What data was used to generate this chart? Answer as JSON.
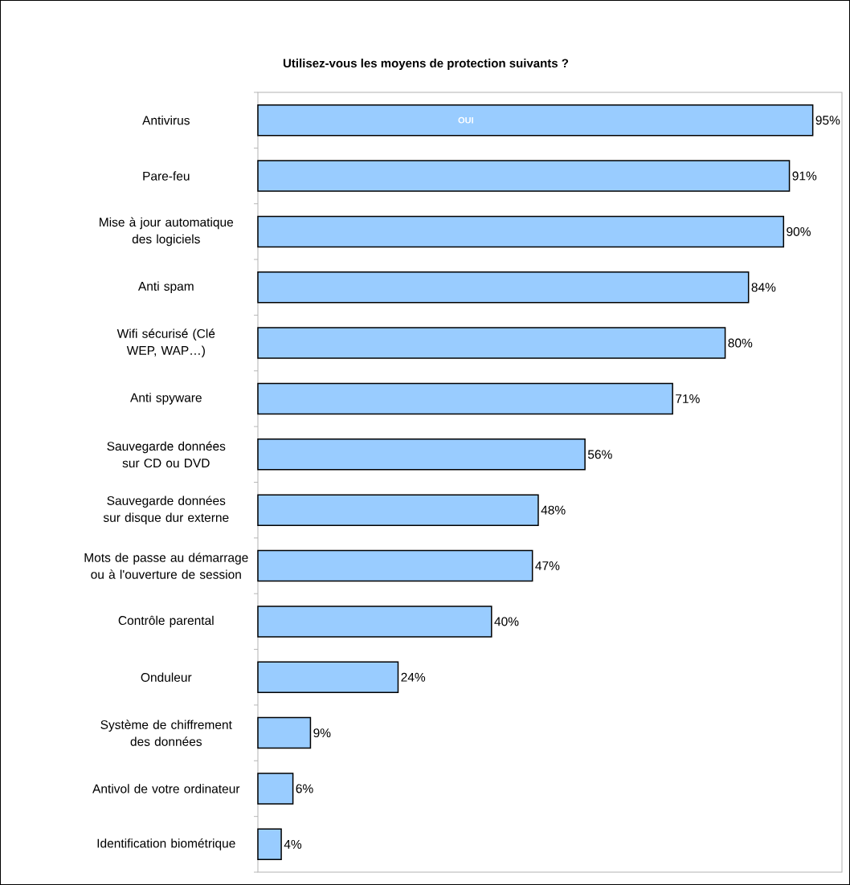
{
  "chart_data": {
    "type": "bar",
    "orientation": "horizontal",
    "title": "Utilisez-vous les moyens de protection suivants ?",
    "categories": [
      "Antivirus",
      "Pare-feu",
      "Mise à jour automatique des logiciels",
      "Anti spam",
      "Wifi sécurisé (Clé WEP, WAP…)",
      "Anti spyware",
      "Sauvegarde données sur CD ou DVD",
      "Sauvegarde données sur disque dur externe",
      "Mots de passe au démarrage ou à l'ouverture de session",
      "Contrôle parental",
      "Onduleur",
      "Système de chiffrement des données",
      "Antivol de votre ordinateur",
      "Identification biométrique"
    ],
    "values": [
      95,
      91,
      90,
      84,
      80,
      71,
      56,
      48,
      47,
      40,
      24,
      9,
      6,
      4
    ],
    "value_labels": [
      "95%",
      "91%",
      "90%",
      "84%",
      "80%",
      "71%",
      "56%",
      "48%",
      "47%",
      "40%",
      "24%",
      "9%",
      "6%",
      "4%"
    ],
    "color": "#99ccff",
    "xlim": [
      0,
      100
    ],
    "annotations": [
      "OUI"
    ]
  }
}
